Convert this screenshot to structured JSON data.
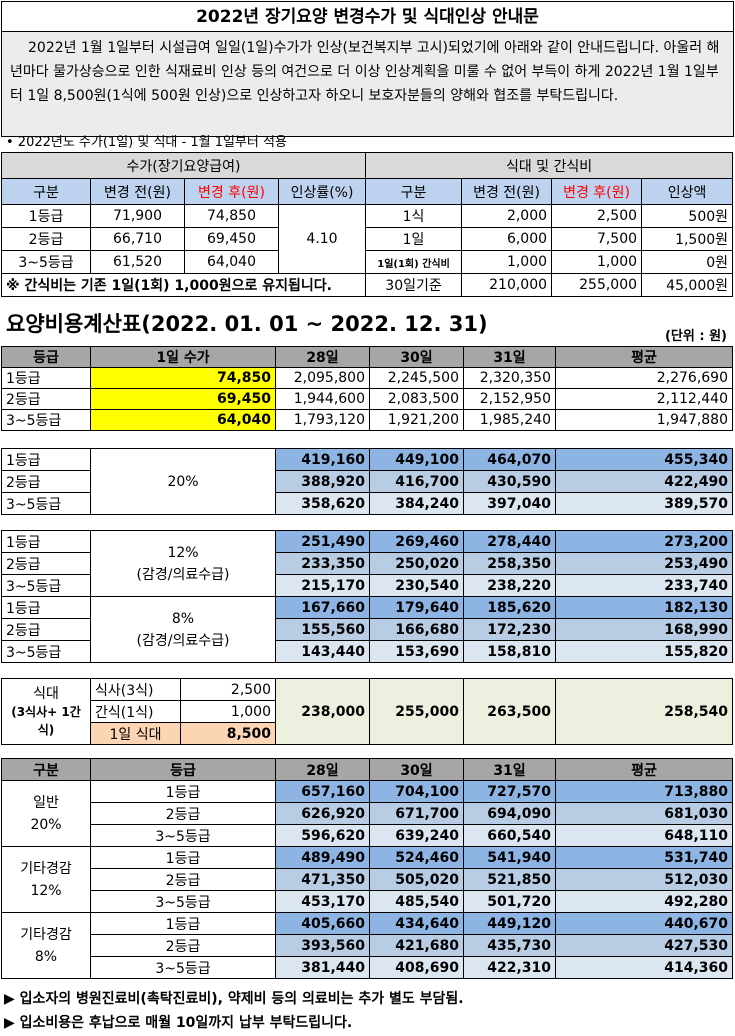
{
  "title": "2022년 장기요양 변경수가 및 식대인상 안내문",
  "intro": "2022년 1월 1일부터 시설급여 일일(1일)수가가 인상(보건복지부 고시)되었기에 아래와 같이 안내드립니다. 아울러 해년마다 물가상승으로 인한 식재료비 인상 등의 여건으로 더 이상 인상계획을 미룰 수 없어 부득이 하게 2022년 1월 1일부터 1일 8,500원(1식에 500원 인상)으로 인상하고자 하오니 보호자분들의 양해와 협조를 부탁드립니다.",
  "note_line": "• 2022년도 수가(1일) 및 식대 - 1월 1일부터 적용",
  "fee_table": {
    "left_group": "수가(장기요양급여)",
    "right_group": "식대 및 간식비",
    "headers": [
      "구분",
      "변경 전(원)",
      "변경 후(원)",
      "인상률(%)",
      "구분",
      "변경 전(원)",
      "변경 후(원)",
      "인상액"
    ],
    "rows": [
      [
        "1등급",
        "71,900",
        "74,850",
        "1식",
        "2,000",
        "2,500",
        "500원"
      ],
      [
        "2등급",
        "66,710",
        "69,450",
        "1일",
        "6,000",
        "7,500",
        "1,500원"
      ],
      [
        "3~5등급",
        "61,520",
        "64,040",
        "1일(1회) 간식비",
        "1,000",
        "1,000",
        "0원"
      ]
    ],
    "rate": "4.10",
    "note": "※ 간식비는 기존 1일(1회) 1,000원으로 유지됩니다.",
    "monthly": [
      "30일기준",
      "210,000",
      "255,000",
      "45,000원"
    ]
  },
  "calc_title": "요양비용계산표(2022. 01. 01 ~ 2022. 12. 31)",
  "unit": "(단위 : 원)",
  "calc": {
    "headers": [
      "등급",
      "1일 수가",
      "28일",
      "30일",
      "31일",
      "평균"
    ],
    "base": [
      [
        "1등급",
        "74,850",
        "2,095,800",
        "2,245,500",
        "2,320,350",
        "2,276,690"
      ],
      [
        "2등급",
        "69,450",
        "1,944,600",
        "2,083,500",
        "2,152,950",
        "2,112,440"
      ],
      [
        "3~5등급",
        "64,040",
        "1,793,120",
        "1,921,200",
        "1,985,240",
        "1,947,880"
      ]
    ],
    "b20": {
      "label": "20%",
      "rows": [
        [
          "1등급",
          "419,160",
          "449,100",
          "464,070",
          "455,340"
        ],
        [
          "2등급",
          "388,920",
          "416,700",
          "430,590",
          "422,490"
        ],
        [
          "3~5등급",
          "358,620",
          "384,240",
          "397,040",
          "389,570"
        ]
      ]
    },
    "b12": {
      "label1": "12%",
      "label2": "(감경/의료수급)",
      "rows": [
        [
          "1등급",
          "251,490",
          "269,460",
          "278,440",
          "273,200"
        ],
        [
          "2등급",
          "233,350",
          "250,020",
          "258,350",
          "253,490"
        ],
        [
          "3~5등급",
          "215,170",
          "230,540",
          "238,220",
          "233,740"
        ]
      ]
    },
    "b8": {
      "label1": "8%",
      "label2": "(감경/의료수급)",
      "rows": [
        [
          "1등급",
          "167,660",
          "179,640",
          "185,620",
          "182,130"
        ],
        [
          "2등급",
          "155,560",
          "166,680",
          "172,230",
          "168,990"
        ],
        [
          "3~5등급",
          "143,440",
          "153,690",
          "158,810",
          "155,820"
        ]
      ]
    },
    "meal": {
      "label1": "식대",
      "label2": "(3식사+ 1간",
      "label3": "식)",
      "items": [
        [
          "식사(3식)",
          "2,500"
        ],
        [
          "간식(1식)",
          "1,000"
        ],
        [
          "1일 식대",
          "8,500"
        ]
      ],
      "values": [
        "238,000",
        "255,000",
        "263,500",
        "258,540"
      ]
    }
  },
  "totals": {
    "headers": [
      "구분",
      "등급",
      "28일",
      "30일",
      "31일",
      "평균"
    ],
    "groups": [
      {
        "l1": "일반",
        "l2": "20%",
        "rows": [
          [
            "1등급",
            "657,160",
            "704,100",
            "727,570",
            "713,880"
          ],
          [
            "2등급",
            "626,920",
            "671,700",
            "694,090",
            "681,030"
          ],
          [
            "3~5등급",
            "596,620",
            "639,240",
            "660,540",
            "648,110"
          ]
        ]
      },
      {
        "l1": "기타경감",
        "l2": "12%",
        "rows": [
          [
            "1등급",
            "489,490",
            "524,460",
            "541,940",
            "531,740"
          ],
          [
            "2등급",
            "471,350",
            "505,020",
            "521,850",
            "512,030"
          ],
          [
            "3~5등급",
            "453,170",
            "485,540",
            "501,720",
            "492,280"
          ]
        ]
      },
      {
        "l1": "기타경감",
        "l2": "8%",
        "rows": [
          [
            "1등급",
            "405,660",
            "434,640",
            "449,120",
            "440,670"
          ],
          [
            "2등급",
            "393,560",
            "421,680",
            "435,730",
            "427,530"
          ],
          [
            "3~5등급",
            "381,440",
            "408,690",
            "422,310",
            "414,360"
          ]
        ]
      }
    ]
  },
  "footer": [
    "▶ 입소자의 병원진료비(촉탁진료비), 약제비 등의 의료비는 추가 별도 부담됨.",
    "▶ 입소비용은 후납으로 매월 10일까지 납부 부탁드립니다."
  ]
}
